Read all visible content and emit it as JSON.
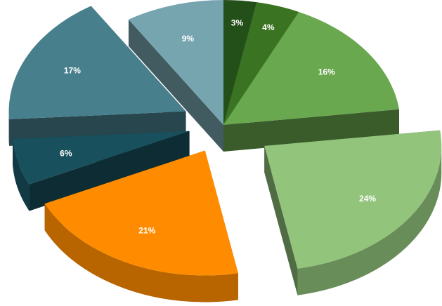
{
  "chart_data": {
    "type": "pie",
    "style": "3d-exploded",
    "title": "",
    "slices": [
      {
        "label": "3%",
        "value": 3,
        "color": "#234f18"
      },
      {
        "label": "4%",
        "value": 4,
        "color": "#3a7321"
      },
      {
        "label": "16%",
        "value": 16,
        "color": "#6aa84f"
      },
      {
        "label": "24%",
        "value": 24,
        "color": "#92c47c"
      },
      {
        "label": "21%",
        "value": 21,
        "color": "#ff8c00"
      },
      {
        "label": "6%",
        "value": 6,
        "color": "#19505e"
      },
      {
        "label": "17%",
        "value": 17,
        "color": "#477f8c"
      },
      {
        "label": "9%",
        "value": 9,
        "color": "#76a5af"
      }
    ]
  }
}
